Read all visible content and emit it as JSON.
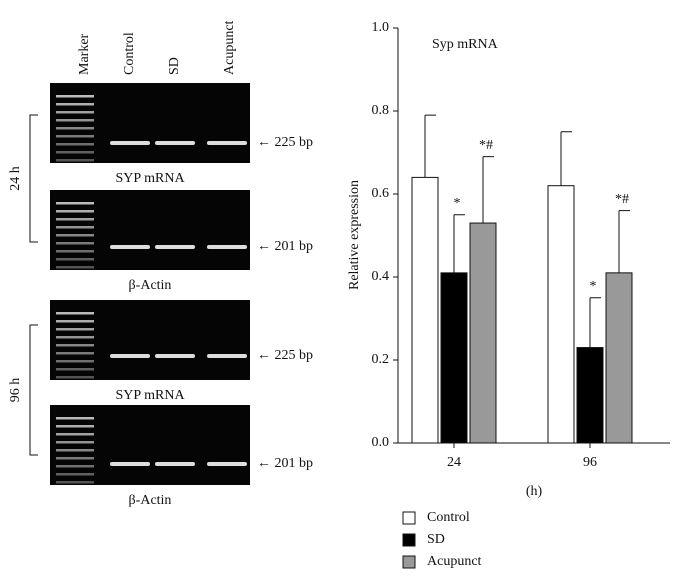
{
  "gel": {
    "lanes": [
      "Marker",
      "Control",
      "SD",
      "Acupunct"
    ],
    "panels": [
      {
        "label": "SYP mRNA",
        "size": "← 225 bp"
      },
      {
        "label": "β-Actin",
        "size": "← 201 bp"
      },
      {
        "label": "SYP mRNA",
        "size": "← 225 bp"
      },
      {
        "label": "β-Actin",
        "size": "← 201 bp"
      }
    ],
    "times": [
      "24 h",
      "96 h"
    ]
  },
  "chart_data": {
    "type": "bar",
    "annotation": "Syp mRNA",
    "x_label": "(h)",
    "y_label": "Relative expression",
    "categories": [
      "24",
      "96"
    ],
    "series": [
      {
        "name": "Control",
        "color": "#ffffff",
        "values": [
          0.64,
          0.62
        ],
        "errors": [
          0.15,
          0.13
        ]
      },
      {
        "name": "SD",
        "color": "#000000",
        "values": [
          0.41,
          0.23
        ],
        "errors": [
          0.14,
          0.12
        ],
        "annotations": [
          "*",
          "*"
        ]
      },
      {
        "name": "Acupunct",
        "color": "#999999",
        "values": [
          0.53,
          0.41
        ],
        "errors": [
          0.16,
          0.15
        ],
        "annotations": [
          "*#",
          "*#"
        ]
      }
    ],
    "ylim": [
      0,
      1
    ],
    "yticks": [
      {
        "value": 0,
        "label": "0.0"
      },
      0.2,
      0.4,
      0.6,
      0.8,
      {
        "value": 1,
        "label": "1.0"
      }
    ],
    "legend": "bottom"
  }
}
